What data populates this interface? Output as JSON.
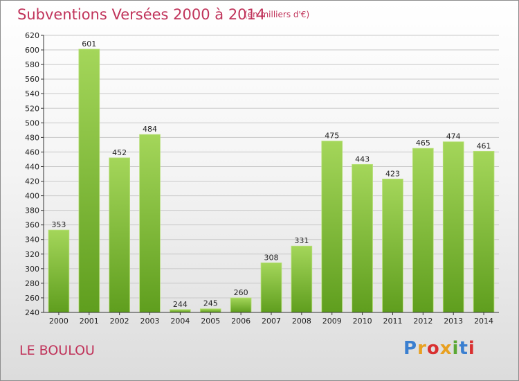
{
  "header": {
    "title": "Subventions Versées 2000 à 2014",
    "subtitle": "(en milliers d'€)"
  },
  "footer": {
    "commune": "LE BOULOU",
    "logo_letters": [
      "P",
      "r",
      "o",
      "x",
      "i",
      "t",
      "i"
    ],
    "logo_colors": [
      "#3a7fd0",
      "#e8a020",
      "#d93030",
      "#e8a020",
      "#5aa834",
      "#3a7fd0",
      "#d93030"
    ]
  },
  "colors": {
    "accent": "#c0335a",
    "bar_light": "#a4d65a",
    "bar_dark": "#5f9e1e",
    "grid": "#c8c8c8",
    "axis": "#333333"
  },
  "chart_data": {
    "type": "bar",
    "title": "Subventions Versées 2000 à 2014",
    "subtitle": "(en milliers d'€)",
    "xlabel": "",
    "ylabel": "",
    "categories": [
      "2000",
      "2001",
      "2002",
      "2003",
      "2004",
      "2005",
      "2006",
      "2007",
      "2008",
      "2009",
      "2010",
      "2011",
      "2012",
      "2013",
      "2014"
    ],
    "values": [
      353,
      601,
      452,
      484,
      244,
      245,
      260,
      308,
      331,
      475,
      443,
      423,
      465,
      474,
      461
    ],
    "ylim": [
      240,
      620
    ],
    "yticks": [
      240,
      260,
      280,
      300,
      320,
      340,
      360,
      380,
      400,
      420,
      440,
      460,
      480,
      500,
      520,
      540,
      560,
      580,
      600,
      620
    ],
    "grid": true,
    "legend": "none"
  }
}
